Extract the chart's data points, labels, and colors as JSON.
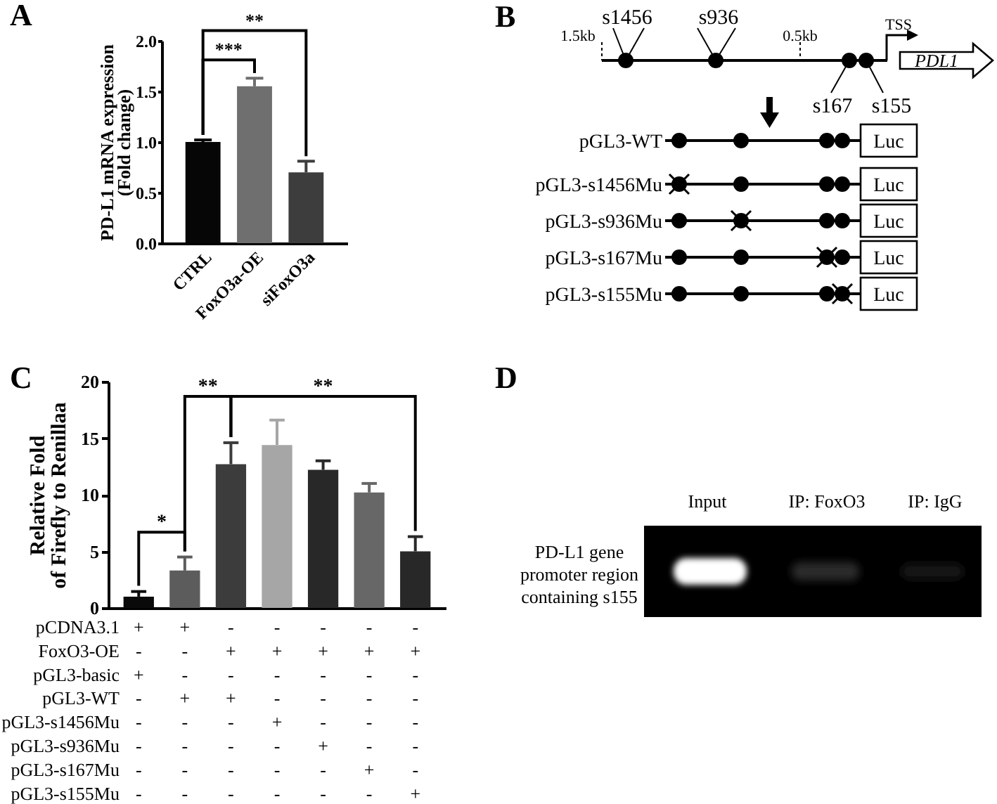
{
  "chart_data": [
    {
      "type": "bar",
      "title": "A",
      "ylabel": "PD-L1 mRNA expression\n(Fold change)",
      "categories": [
        "CTRL",
        "FoxO3a-OE",
        "siFoxO3a"
      ],
      "values": [
        1.0,
        1.55,
        0.7
      ],
      "colors": [
        "#060606",
        "#6f6f6f",
        "#3d3d3d"
      ],
      "errors": [
        [
          1.0,
          1.02
        ],
        [
          1.55,
          1.63
        ],
        [
          0.7,
          0.81
        ]
      ],
      "ylim": [
        0,
        2
      ],
      "yticks": [
        {
          "value": 0,
          "label": "0.0"
        },
        0.5,
        {
          "value": 1,
          "label": "1.0"
        },
        1.5,
        {
          "value": 2,
          "label": "2.0"
        }
      ],
      "annotations": [
        "**",
        "***"
      ]
    },
    {
      "type": "other",
      "title": "B",
      "annotations": [
        "s1456",
        "s936",
        "TSS",
        "1.5kb",
        "0.5kb",
        "PDL1",
        "s167",
        "s155",
        "pGL3-WT",
        "Luc",
        "pGL3-s1456Mu",
        "Luc",
        "pGL3-s936Mu",
        "Luc",
        "pGL3-s167Mu",
        "Luc",
        "pGL3-s155Mu",
        "Luc"
      ]
    },
    {
      "type": "bar",
      "title": "C",
      "ylabel": "Relative Fold\nof Firefly to Renillaa",
      "categories": [
        null,
        null,
        null,
        null,
        null,
        null,
        null
      ],
      "values": [
        1.0,
        3.3,
        12.7,
        14.4,
        12.2,
        10.2,
        5.0
      ],
      "colors": [
        "#0a0a0a",
        "#5c5c5c",
        "#3c3c3c",
        "#a6a6a6",
        "#282828",
        "#676767",
        "#282828"
      ],
      "errors": [
        [
          1.0,
          1.45
        ],
        [
          3.3,
          4.5
        ],
        [
          12.7,
          14.6
        ],
        [
          14.4,
          16.6
        ],
        [
          12.2,
          13.0
        ],
        [
          10.2,
          11.0
        ],
        [
          5.0,
          6.3
        ]
      ],
      "ylim": [
        0,
        20
      ],
      "yticks": [
        0,
        5,
        10,
        15,
        20
      ],
      "annotations": [
        "**",
        "**",
        "*"
      ]
    },
    {
      "type": "other",
      "annotations": [
        "pCDNA3.1",
        "+",
        "+",
        "-",
        "-",
        "-",
        "-",
        "-",
        "FoxO3-OE",
        "-",
        "-",
        "+",
        "+",
        "+",
        "+",
        "+",
        "pGL3-basic",
        "+",
        "-",
        "-",
        "-",
        "-",
        "-",
        "-",
        "pGL3-WT",
        "-",
        "+",
        "+",
        "-",
        "-",
        "-",
        "-",
        "pGL3-s1456Mu",
        "-",
        "-",
        "-",
        "+",
        "-",
        "-",
        "-",
        "pGL3-s936Mu",
        "-",
        "-",
        "-",
        "-",
        "+",
        "-",
        "-",
        "pGL3-s167Mu",
        "-",
        "-",
        "-",
        "-",
        "-",
        "+",
        "-",
        "pGL3-s155Mu",
        "-",
        "-",
        "-",
        "-",
        "-",
        "-",
        "+"
      ]
    },
    {
      "type": "other",
      "title": "D",
      "annotations": [
        "Input",
        "IP: FoxO3",
        "IP: IgG",
        "PD-L1 gene\npromoter region\ncontaining s155"
      ]
    }
  ]
}
